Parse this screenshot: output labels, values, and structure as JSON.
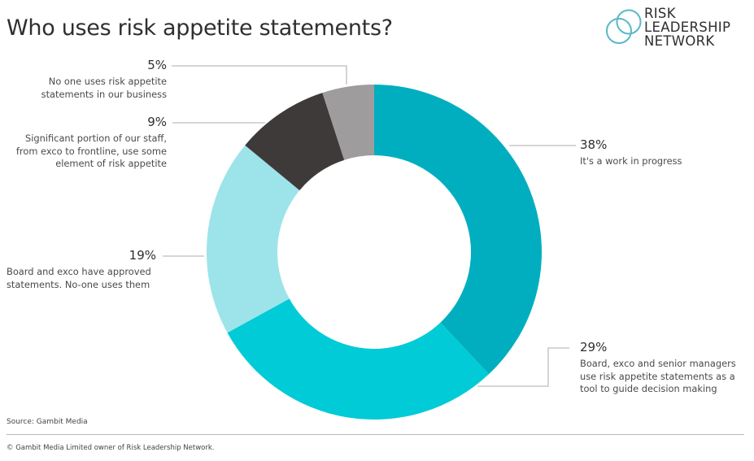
{
  "title": "Who uses risk appetite statements?",
  "logo": {
    "line1": "RISK",
    "line2": "LEADERSHIP",
    "line3": "NETWORK",
    "color": "#5ab8c8"
  },
  "labels": {
    "s5": {
      "pct": "5%",
      "text1": "No one uses risk appetite",
      "text2": "statements in our business"
    },
    "s9": {
      "pct": "9%",
      "text1": "Significant portion of our staff,",
      "text2": "from exco to frontline, use some",
      "text3": "element of risk appetite"
    },
    "s19": {
      "pct": "19%",
      "text1": "Board and exco have approved",
      "text2": "statements. No-one uses them"
    },
    "s38": {
      "pct": "38%",
      "text1": "It's a work in progress"
    },
    "s29": {
      "pct": "29%",
      "text1": "Board, exco and senior managers",
      "text2": "use risk appetite statements as a",
      "text3": "tool to guide decision making"
    }
  },
  "footer": {
    "source": "Source: Gambit Media",
    "copyright": "© Gambit Media Limited owner of Risk Leadership Network."
  },
  "chart_data": {
    "type": "pie",
    "subtype": "donut",
    "title": "Who uses risk appetite statements?",
    "categories": [
      "It's a work in progress",
      "Board, exco and senior managers use risk appetite statements as a tool to guide decision making",
      "Board and exco have approved statements. No-one uses them",
      "Significant portion of our staff, from exco to frontline, use some element of risk appetite",
      "No one uses risk appetite statements in our business"
    ],
    "values": [
      38,
      29,
      19,
      9,
      5
    ],
    "unit": "%",
    "colors": [
      "#00aebf",
      "#00cbd6",
      "#9ce4ea",
      "#3f3a3a",
      "#9e9c9d"
    ],
    "start_angle_deg": 0,
    "direction": "clockwise from 12 o'clock",
    "legend": "none (direct labels with leader lines)",
    "source": "Source: Gambit Media"
  }
}
